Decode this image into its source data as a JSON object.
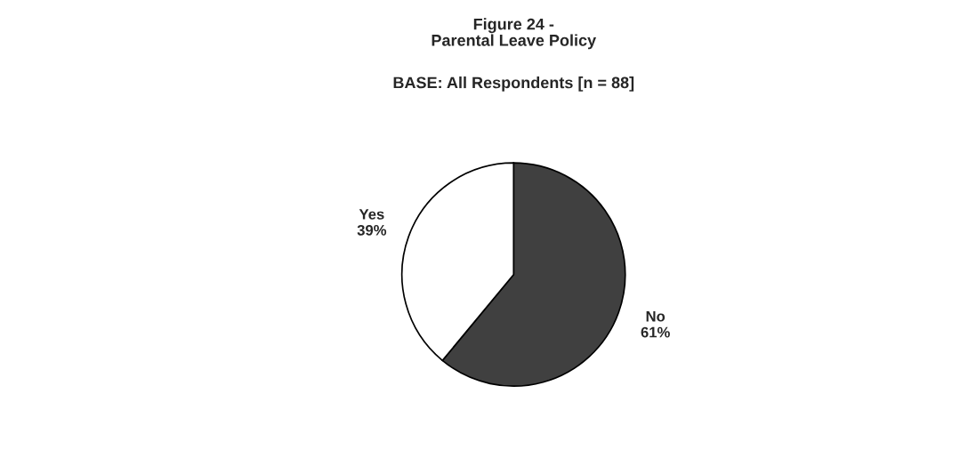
{
  "chart_data": {
    "type": "pie",
    "title": "Figure 24 -\nParental Leave Policy",
    "subtitle": "BASE: All Respondents [n = 88]",
    "categories": [
      "No",
      "Yes"
    ],
    "values": [
      61,
      39
    ],
    "colors": [
      "#404040",
      "#ffffff"
    ],
    "value_labels": [
      "61%",
      "39%"
    ]
  }
}
